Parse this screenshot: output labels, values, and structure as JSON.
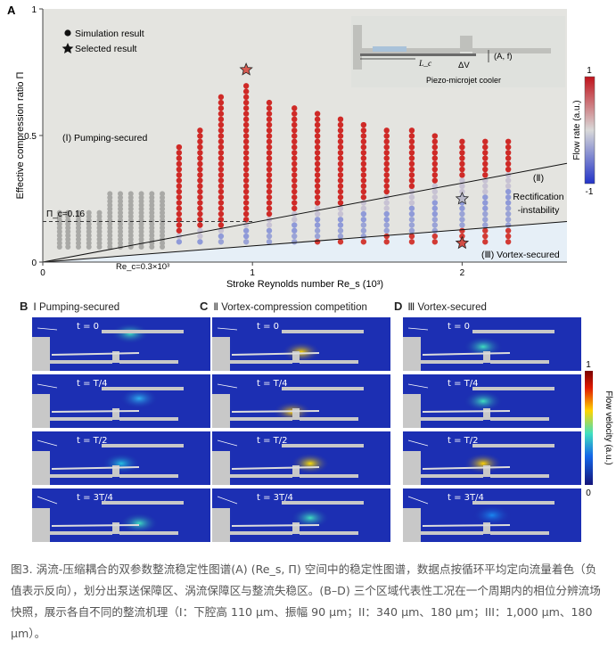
{
  "panel_a": {
    "letter": "A",
    "chart_data": {
      "type": "scatter",
      "xlabel": "Stroke Reynolds number Re_s (10³)",
      "ylabel": "Effective compression ratio Π",
      "xlim": [
        0,
        2.5
      ],
      "ylim": [
        0,
        1
      ],
      "x_ticks": [
        "0",
        "1",
        "2"
      ],
      "y_ticks": [
        "0",
        "0.5",
        "1"
      ],
      "grid": false,
      "legend_position": "top-left",
      "legend": [
        "Simulation result",
        "Selected result"
      ],
      "selected_points": [
        {
          "x": 0.97,
          "y": 0.76
        },
        {
          "x": 2.0,
          "y": 0.25
        },
        {
          "x": 2.0,
          "y": 0.075
        }
      ],
      "boundary_lines": [
        {
          "name": "upper",
          "x": [
            0,
            2.5
          ],
          "y": [
            0,
            0.39
          ]
        },
        {
          "name": "lower",
          "x": [
            0,
            2.5
          ],
          "y": [
            0,
            0.16
          ]
        }
      ],
      "threshold": {
        "label": "Π_c=0.16",
        "y": 0.16
      },
      "rec_label": "Re_c=0.3×10³",
      "rec_x": 0.3,
      "region_labels": {
        "pumping": "(Ⅰ) Pumping-secured",
        "rect_num": "(Ⅱ)",
        "rect_1": "Rectification",
        "rect_2": "-instability",
        "vortex": "(Ⅲ) Vortex-secured"
      },
      "columns_x": [
        0.65,
        0.75,
        0.85,
        0.97,
        1.08,
        1.2,
        1.31,
        1.42,
        1.53,
        1.64,
        1.76,
        1.87,
        2.0,
        2.11,
        2.22
      ],
      "columns_ymax": [
        0.47,
        0.53,
        0.66,
        0.7,
        0.65,
        0.61,
        0.59,
        0.57,
        0.55,
        0.53,
        0.52,
        0.5,
        0.49,
        0.49,
        0.49
      ],
      "colorbar": {
        "label": "Flow rate (a.u.)",
        "max": "1",
        "min": "-1"
      }
    },
    "inset": {
      "caption": "Piezo-microjet cooler",
      "lc": "L_c",
      "dv": "ΔV",
      "af": "(A, f)"
    }
  },
  "subfigs": [
    {
      "letter": "B",
      "title": "Ⅰ  Pumping-secured"
    },
    {
      "letter": "C",
      "title": "Ⅱ  Vortex-compression competition"
    },
    {
      "letter": "D",
      "title": "Ⅲ  Vortex-secured"
    }
  ],
  "frame_times": [
    "t = 0",
    "t = T/4",
    "t = T/2",
    "t = 3T/4"
  ],
  "velocity_colorbar": {
    "label": "Flow velocity (a.u.)",
    "max": "1",
    "min": "0"
  },
  "caption": "图3. 涡流-压缩耦合的双参数整流稳定性图谱(A) (Re_s, Π) 空间中的稳定性图谱，数据点按循环平均定向流量着色（负值表示反向），划分出泵送保障区、涡流保障区与整流失稳区。(B–D) 三个区域代表性工况在一个周期内的相位分辨流场快照，展示各自不同的整流机理（I：下腔高 110 μm、振幅 90 μm；II：340 μm、180 μm；III：1,000 μm、180 μm）。"
}
